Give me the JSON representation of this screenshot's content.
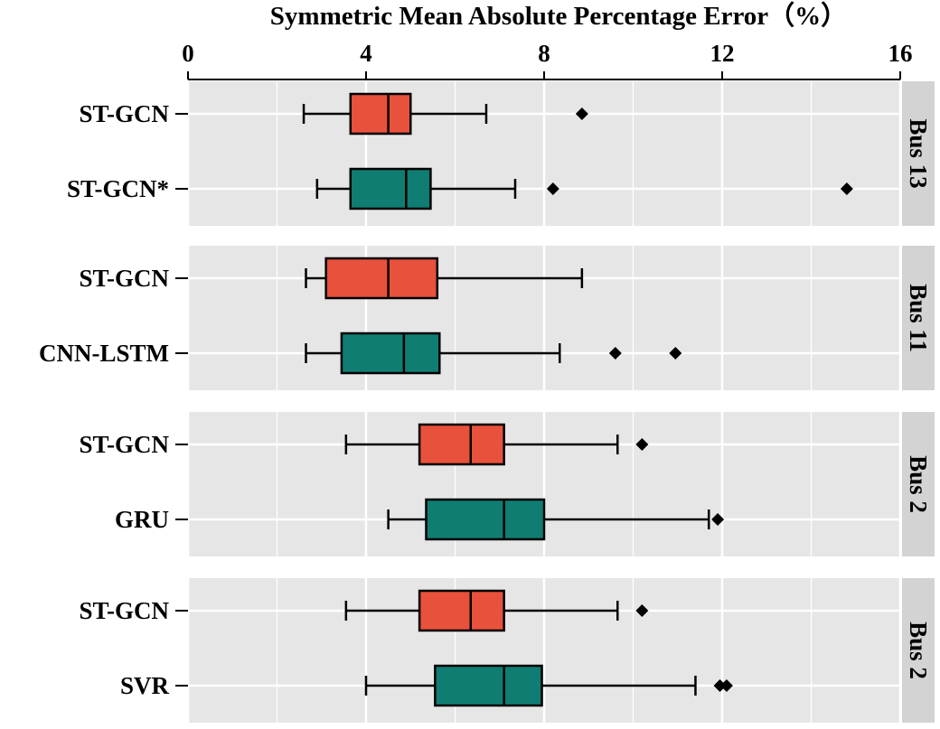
{
  "chart_data": {
    "type": "box",
    "title": "Symmetric Mean Absolute Percentage Error（%）",
    "xlim": [
      0,
      16
    ],
    "xticks": [
      "0",
      "4",
      "8",
      "12",
      "16"
    ],
    "tick_values": [
      0,
      4,
      8,
      12,
      16
    ],
    "orientation": "horizontal",
    "grid": true,
    "colors": {
      "st_gcn": "#e8513b",
      "baseline": "#0f7d72",
      "panel_bg": "#e6e6e6",
      "strip_bg": "#d3d3d3"
    },
    "panels": [
      {
        "label": "Bus 13",
        "boxes": [
          {
            "name": "ST-GCN",
            "color": "#e8513b",
            "whisker_low": 2.6,
            "q1": 3.65,
            "median": 4.5,
            "q3": 5.0,
            "whisker_high": 6.7,
            "outliers": [
              8.85
            ]
          },
          {
            "name": "ST-GCN*",
            "color": "#0f7d72",
            "whisker_low": 2.9,
            "q1": 3.65,
            "median": 4.9,
            "q3": 5.45,
            "whisker_high": 7.35,
            "outliers": [
              8.2,
              14.8
            ]
          }
        ]
      },
      {
        "label": "Bus 11",
        "boxes": [
          {
            "name": "ST-GCN",
            "color": "#e8513b",
            "whisker_low": 2.65,
            "q1": 3.1,
            "median": 4.5,
            "q3": 5.6,
            "whisker_high": 8.85,
            "outliers": []
          },
          {
            "name": "CNN-LSTM",
            "color": "#0f7d72",
            "whisker_low": 2.65,
            "q1": 3.45,
            "median": 4.85,
            "q3": 5.65,
            "whisker_high": 8.35,
            "outliers": [
              9.6,
              10.95
            ]
          }
        ]
      },
      {
        "label": "Bus 2",
        "boxes": [
          {
            "name": "ST-GCN",
            "color": "#e8513b",
            "whisker_low": 3.55,
            "q1": 5.2,
            "median": 6.35,
            "q3": 7.1,
            "whisker_high": 9.65,
            "outliers": [
              10.2
            ]
          },
          {
            "name": "GRU",
            "color": "#0f7d72",
            "whisker_low": 4.5,
            "q1": 5.35,
            "median": 7.1,
            "q3": 8.0,
            "whisker_high": 11.7,
            "outliers": [
              11.9
            ]
          }
        ]
      },
      {
        "label": "Bus 2",
        "boxes": [
          {
            "name": "ST-GCN",
            "color": "#e8513b",
            "whisker_low": 3.55,
            "q1": 5.2,
            "median": 6.35,
            "q3": 7.1,
            "whisker_high": 9.65,
            "outliers": [
              10.2
            ]
          },
          {
            "name": "SVR",
            "color": "#0f7d72",
            "whisker_low": 4.0,
            "q1": 5.55,
            "median": 7.1,
            "q3": 7.95,
            "whisker_high": 11.4,
            "outliers": [
              11.95,
              12.1
            ]
          }
        ]
      }
    ]
  }
}
